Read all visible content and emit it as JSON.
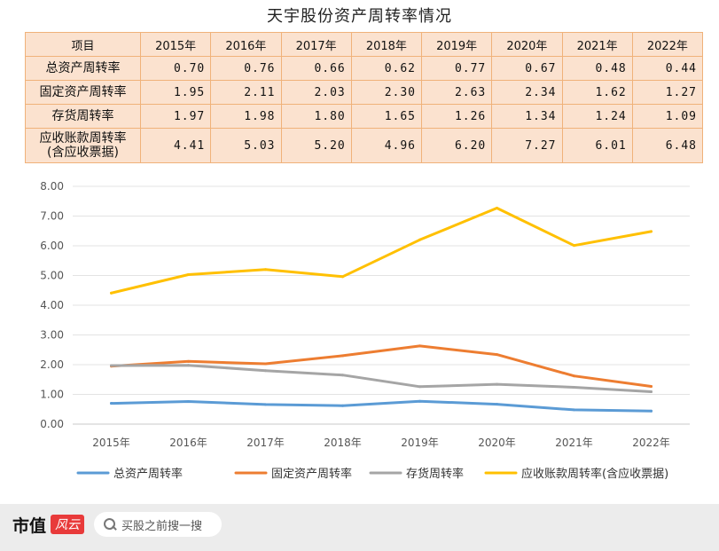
{
  "title": "天宇股份资产周转率情况",
  "table": {
    "header_label": "项目",
    "years": [
      "2015年",
      "2016年",
      "2017年",
      "2018年",
      "2019年",
      "2020年",
      "2021年",
      "2022年"
    ],
    "rows": [
      {
        "name": "总资产周转率",
        "values": [
          "0.70",
          "0.76",
          "0.66",
          "0.62",
          "0.77",
          "0.67",
          "0.48",
          "0.44"
        ]
      },
      {
        "name": "固定资产周转率",
        "values": [
          "1.95",
          "2.11",
          "2.03",
          "2.30",
          "2.63",
          "2.34",
          "1.62",
          "1.27"
        ]
      },
      {
        "name": "存货周转率",
        "values": [
          "1.97",
          "1.98",
          "1.80",
          "1.65",
          "1.26",
          "1.34",
          "1.24",
          "1.09"
        ]
      },
      {
        "name": "应收账款周转率",
        "name2": "(含应收票据)",
        "values": [
          "4.41",
          "5.03",
          "5.20",
          "4.96",
          "6.20",
          "7.27",
          "6.01",
          "6.48"
        ]
      }
    ]
  },
  "chart_data": {
    "type": "line",
    "x": [
      "2015年",
      "2016年",
      "2017年",
      "2018年",
      "2019年",
      "2020年",
      "2021年",
      "2022年"
    ],
    "ylim": [
      0,
      8
    ],
    "yticks": [
      "0.00",
      "1.00",
      "2.00",
      "3.00",
      "4.00",
      "5.00",
      "6.00",
      "7.00",
      "8.00"
    ],
    "grid": true,
    "legend": "bottom",
    "series": [
      {
        "name": "总资产周转率",
        "color": "#5b9bd5",
        "values": [
          0.7,
          0.76,
          0.66,
          0.62,
          0.77,
          0.67,
          0.48,
          0.44
        ]
      },
      {
        "name": "固定资产周转率",
        "color": "#ed7d31",
        "values": [
          1.95,
          2.11,
          2.03,
          2.3,
          2.63,
          2.34,
          1.62,
          1.27
        ]
      },
      {
        "name": "存货周转率",
        "color": "#a5a5a5",
        "values": [
          1.97,
          1.98,
          1.8,
          1.65,
          1.26,
          1.34,
          1.24,
          1.09
        ]
      },
      {
        "name": "应收账款周转率(含应收票据)",
        "color": "#ffc000",
        "values": [
          4.41,
          5.03,
          5.2,
          4.96,
          6.2,
          7.27,
          6.01,
          6.48
        ]
      }
    ]
  },
  "footer": {
    "brand": "市值",
    "brand_mark": "风云",
    "search_placeholder": "买股之前搜一搜",
    "search_icon": "search-icon"
  }
}
